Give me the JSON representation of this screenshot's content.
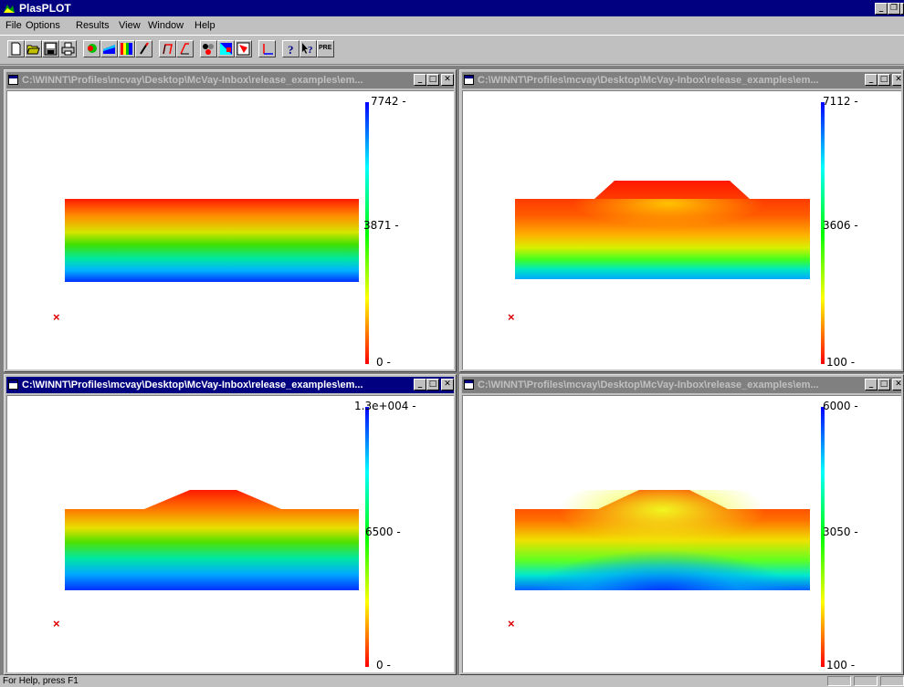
{
  "app": {
    "title": "PlasPLOT"
  },
  "menu": [
    "File",
    "Options",
    "Results",
    "View",
    "Window",
    "Help"
  ],
  "toolbar": {
    "buttons": [
      "new-icon",
      "open-icon",
      "save-icon",
      "print-icon",
      "mesh-icon",
      "contour-icon",
      "color-scale-icon",
      "pencil-icon",
      "axis-left-icon",
      "axis-right-icon",
      "node-icon",
      "element-color-icon",
      "boundary-icon",
      "axes-icon",
      "help-icon",
      "context-help-icon",
      "pre-icon"
    ],
    "pre_label": "PRE"
  },
  "windows": [
    {
      "title": "C:\\WINNT\\Profiles\\mcvay\\Desktop\\McVay-Inbox\\release_examples\\em...",
      "active": false,
      "scale_labels": [
        "7742 -",
        "3871 -",
        "0 -"
      ]
    },
    {
      "title": "C:\\WINNT\\Profiles\\mcvay\\Desktop\\McVay-Inbox\\release_examples\\em...",
      "active": false,
      "scale_labels": [
        "7112 -",
        "3606 -",
        "100 -"
      ]
    },
    {
      "title": "C:\\WINNT\\Profiles\\mcvay\\Desktop\\McVay-Inbox\\release_examples\\em...",
      "active": true,
      "scale_labels": [
        "1.3e+004 -",
        "6500 -",
        "0 -"
      ]
    },
    {
      "title": "C:\\WINNT\\Profiles\\mcvay\\Desktop\\McVay-Inbox\\release_examples\\em...",
      "active": false,
      "scale_labels": [
        "6000 -",
        "3050 -",
        "100 -"
      ]
    }
  ],
  "marker": "×",
  "status": {
    "text": "For Help, press F1"
  },
  "colors": {
    "titlebar": "#000080",
    "marker": "#e00000",
    "desktop": "#808080"
  }
}
